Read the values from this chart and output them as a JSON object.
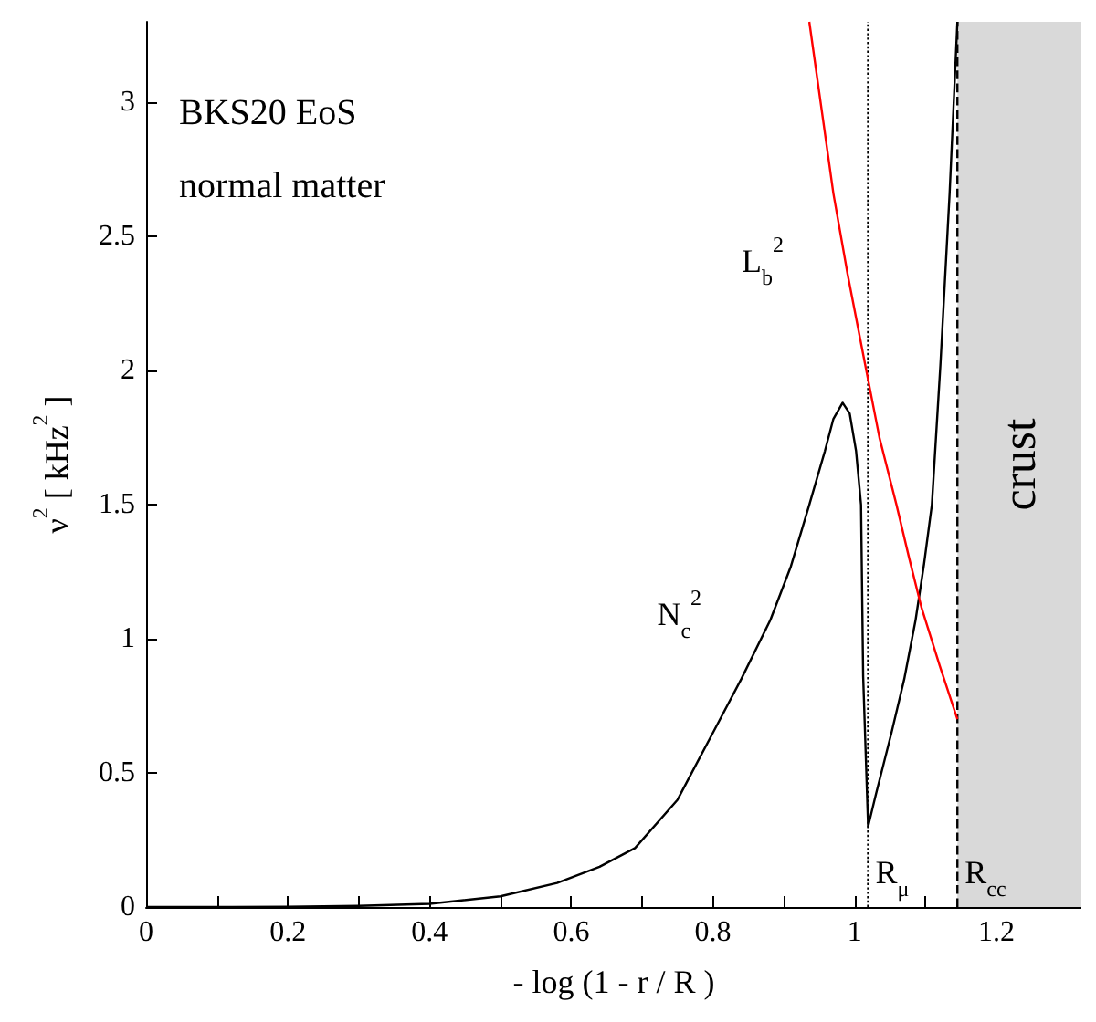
{
  "chart_data": {
    "type": "line",
    "xlabel": "- log (1 - r / R )",
    "ylabel": "ν$^{2}$ [ kHz$^{2}$ ]",
    "annotations": [
      "BKS20 EoS",
      "normal matter"
    ],
    "series": [
      {
        "name": "N$_{c}$$^{2}$",
        "color": "#000000",
        "x": [
          0,
          0.1,
          0.2,
          0.3,
          0.4,
          0.5,
          0.58,
          0.64,
          0.69,
          0.75,
          0.8,
          0.84,
          0.881,
          0.91,
          0.936,
          0.958,
          0.97,
          0.983,
          0.993,
          1.002,
          1.009,
          1.012,
          1.019,
          1.03,
          1.052,
          1.07,
          1.086,
          1.098,
          1.109,
          1.121,
          1.134,
          1.145
        ],
        "values": [
          0,
          0,
          0.001,
          0.004,
          0.012,
          0.04,
          0.09,
          0.15,
          0.22,
          0.4,
          0.65,
          0.85,
          1.07,
          1.27,
          1.5,
          1.7,
          1.82,
          1.88,
          1.84,
          1.7,
          1.5,
          0.86,
          0.3,
          0.42,
          0.65,
          0.85,
          1.07,
          1.28,
          1.5,
          2.02,
          2.66,
          3.3
        ]
      },
      {
        "name": "L$_{b}$$^{2}$",
        "color": "#ff0000",
        "x": [
          0.936,
          0.97,
          0.99,
          1.015,
          1.035,
          1.059,
          1.077,
          1.094,
          1.12,
          1.145
        ],
        "values": [
          3.3,
          2.66,
          2.36,
          2.02,
          1.75,
          1.5,
          1.3,
          1.12,
          0.9,
          0.7
        ]
      }
    ],
    "ref_lines": [
      {
        "axis": "x",
        "value": 1.019,
        "label": "R$_{μ}$",
        "line_style": "dotted",
        "color": "#000000"
      },
      {
        "axis": "x",
        "value": 1.145,
        "label": "R$_{cc}$",
        "line_style": "dashed",
        "color": "#000000"
      }
    ],
    "bands": [
      {
        "axis": "x",
        "from": 1.145,
        "to": 1.32,
        "label": "crust",
        "color": "#d9d9d9"
      }
    ],
    "xlim": [
      0,
      1.32
    ],
    "xticks": [
      0,
      {
        "value": 0.1,
        "label": null
      },
      0.2,
      {
        "value": 0.3,
        "label": null
      },
      0.4,
      {
        "value": 0.5,
        "label": null
      },
      0.6,
      {
        "value": 0.7,
        "label": null
      },
      0.8,
      {
        "value": 0.9,
        "label": null
      },
      1,
      {
        "value": 1.1,
        "label": null
      },
      1.2,
      {
        "value": 1.3,
        "label": null
      }
    ],
    "ylim": [
      0,
      3.3
    ],
    "yticks": [
      0,
      0.5,
      1,
      1.5,
      2,
      2.5,
      3
    ],
    "grid": false,
    "legend": false,
    "marker": "none",
    "line_style": "solid"
  }
}
